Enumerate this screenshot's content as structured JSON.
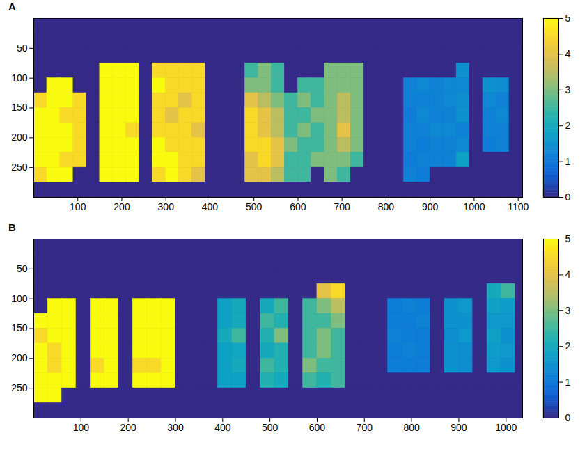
{
  "chart_data": [
    {
      "type": "heatmap",
      "title": "A",
      "x": [
        15,
        45,
        75,
        105,
        135,
        165,
        195,
        225,
        255,
        285,
        315,
        345,
        375,
        405,
        435,
        465,
        495,
        525,
        555,
        585,
        615,
        645,
        675,
        705,
        735,
        765,
        795,
        825,
        855,
        885,
        915,
        945,
        975,
        1005,
        1035,
        1065,
        1095
      ],
      "y": [
        12.5,
        37.5,
        62.5,
        87.5,
        112.5,
        137.5,
        162.5,
        187.5,
        212.5,
        237.5,
        262.5,
        287.5
      ],
      "values": [
        [
          0,
          0,
          0,
          0,
          0,
          0,
          0,
          0,
          0,
          0,
          0,
          0,
          0,
          0,
          0,
          0,
          0,
          0,
          0,
          0,
          0,
          0,
          0,
          0,
          0,
          0,
          0,
          0,
          0,
          0,
          0,
          0,
          0,
          0,
          0,
          0,
          0
        ],
        [
          0,
          0,
          0,
          0,
          0,
          0,
          0,
          0,
          0,
          0,
          0,
          0,
          0,
          0,
          0,
          0,
          0,
          0,
          0,
          0,
          0,
          0,
          0,
          0,
          0,
          0,
          0,
          0,
          0,
          0,
          0,
          0,
          0,
          0,
          0,
          0,
          0
        ],
        [
          0,
          0,
          0,
          0,
          0,
          0,
          0,
          0,
          0,
          0,
          0,
          0,
          0,
          0,
          0,
          0,
          0,
          0,
          0,
          0,
          0,
          0,
          0,
          0,
          0,
          0,
          0,
          0,
          0,
          0,
          0,
          0,
          0,
          0,
          0,
          0,
          0
        ],
        [
          0,
          0,
          0,
          0,
          0,
          5,
          5,
          5,
          0,
          4.5,
          4.5,
          4.5,
          4.5,
          0,
          0,
          0,
          2.5,
          3,
          2.5,
          0,
          0,
          0,
          3,
          3,
          3,
          0,
          0,
          0,
          0,
          0,
          0,
          0,
          1.5,
          0,
          0,
          0,
          0
        ],
        [
          0,
          5,
          5,
          0,
          0,
          5,
          5,
          5,
          0,
          5,
          4.5,
          4.5,
          4.5,
          0,
          0,
          0,
          3,
          3,
          2.5,
          0,
          2.5,
          2.5,
          3,
          3,
          3,
          0,
          0,
          0,
          1.2,
          1.3,
          1.2,
          1.3,
          1.3,
          0,
          1.5,
          1.4,
          0
        ],
        [
          4.5,
          5,
          5,
          4.5,
          0,
          5,
          5,
          5,
          0,
          4.5,
          4.5,
          4,
          4.5,
          0,
          0,
          0,
          4,
          3.5,
          3,
          2.5,
          3,
          2.5,
          3,
          3.5,
          3,
          0,
          0,
          0,
          1.2,
          1.2,
          1.2,
          1.3,
          1.4,
          0,
          1.3,
          1.2,
          0
        ],
        [
          5,
          5,
          4.5,
          4.5,
          0,
          5,
          5,
          5,
          0,
          4.5,
          4,
          4.5,
          4.5,
          0,
          0,
          0,
          4.5,
          4,
          3.5,
          2.5,
          2.5,
          3,
          3,
          3.5,
          3,
          0,
          0,
          0,
          1.1,
          1.3,
          1.2,
          1.2,
          1.5,
          0,
          1.2,
          1.3,
          0
        ],
        [
          5,
          5,
          5,
          4.5,
          0,
          5,
          5,
          4.5,
          0,
          4.5,
          4.5,
          4.5,
          4,
          0,
          0,
          0,
          4.5,
          4,
          3.5,
          2.5,
          3,
          2.5,
          3,
          4,
          3,
          0,
          0,
          0,
          1.2,
          1.2,
          1.3,
          1.3,
          1.2,
          0,
          1.2,
          1.2,
          0
        ],
        [
          5,
          5,
          5,
          4.5,
          0,
          5,
          5,
          5,
          0,
          5,
          4.5,
          4.5,
          4.5,
          0,
          0,
          0,
          4.5,
          4.5,
          4,
          3,
          2.5,
          2.5,
          3,
          3.5,
          3,
          0,
          0,
          0,
          1.2,
          1.1,
          1.2,
          1.2,
          1.3,
          0,
          1.1,
          1.2,
          0
        ],
        [
          5,
          5,
          4.5,
          4.5,
          0,
          5,
          5,
          5,
          0,
          5,
          5,
          4.5,
          4.5,
          0,
          0,
          0,
          4,
          4.5,
          4,
          2.5,
          2.5,
          3,
          3,
          3,
          2.5,
          0,
          0,
          0,
          1.1,
          1.2,
          1.2,
          1.2,
          1.8,
          0,
          0,
          0,
          0
        ],
        [
          4.5,
          5,
          5,
          0,
          0,
          5,
          5,
          5,
          0,
          4.5,
          5,
          4.5,
          4,
          0,
          0,
          0,
          4,
          4,
          3.5,
          2.5,
          2.5,
          0,
          3,
          2.5,
          0,
          0,
          0,
          0,
          1.2,
          1.1,
          0,
          0,
          0,
          0,
          0,
          0,
          0
        ],
        [
          0,
          0,
          0,
          0,
          0,
          0,
          0,
          0,
          0,
          0,
          0,
          0,
          0,
          0,
          0,
          0,
          0,
          0,
          0,
          0,
          0,
          0,
          0,
          0,
          0,
          0,
          0,
          0,
          0,
          0,
          0,
          0,
          0,
          0,
          0,
          0,
          0
        ]
      ],
      "xlim": [
        0,
        1110
      ],
      "ylim": [
        0,
        300
      ],
      "xticks": [
        100,
        200,
        300,
        400,
        500,
        600,
        700,
        800,
        900,
        1000,
        1100
      ],
      "yticks": [
        50,
        100,
        150,
        200,
        250
      ],
      "colorbar": {
        "range": [
          0,
          5
        ],
        "ticks": [
          0,
          1,
          2,
          3,
          4,
          5
        ]
      }
    },
    {
      "type": "heatmap",
      "title": "B",
      "x": [
        15,
        45,
        75,
        105,
        135,
        165,
        195,
        225,
        255,
        285,
        315,
        345,
        375,
        405,
        435,
        465,
        495,
        525,
        555,
        585,
        615,
        645,
        675,
        705,
        735,
        765,
        795,
        825,
        855,
        885,
        915,
        945,
        975,
        1005,
        1035
      ],
      "y": [
        12.5,
        37.5,
        62.5,
        87.5,
        112.5,
        137.5,
        162.5,
        187.5,
        212.5,
        237.5,
        262.5,
        287.5
      ],
      "values": [
        [
          0,
          0,
          0,
          0,
          0,
          0,
          0,
          0,
          0,
          0,
          0,
          0,
          0,
          0,
          0,
          0,
          0,
          0,
          0,
          0,
          0,
          0,
          0,
          0,
          0,
          0,
          0,
          0,
          0,
          0,
          0,
          0,
          0,
          0,
          0
        ],
        [
          0,
          0,
          0,
          0,
          0,
          0,
          0,
          0,
          0,
          0,
          0,
          0,
          0,
          0,
          0,
          0,
          0,
          0,
          0,
          0,
          0,
          0,
          0,
          0,
          0,
          0,
          0,
          0,
          0,
          0,
          0,
          0,
          0,
          0,
          0
        ],
        [
          0,
          0,
          0,
          0,
          0,
          0,
          0,
          0,
          0,
          0,
          0,
          0,
          0,
          0,
          0,
          0,
          0,
          0,
          0,
          0,
          0,
          0,
          0,
          0,
          0,
          0,
          0,
          0,
          0,
          0,
          0,
          0,
          0,
          0,
          0
        ],
        [
          0,
          0,
          0,
          0,
          0,
          0,
          0,
          0,
          0,
          0,
          0,
          0,
          0,
          0,
          0,
          0,
          0,
          0,
          0,
          0,
          4,
          4.5,
          0,
          0,
          0,
          0,
          0,
          0,
          0,
          0,
          0,
          0,
          2,
          2.5,
          0
        ],
        [
          0,
          5,
          5,
          0,
          5,
          5,
          0,
          5,
          5,
          5,
          0,
          0,
          0,
          1.8,
          2,
          0,
          2,
          2.5,
          0,
          2.5,
          3,
          3.5,
          0,
          0,
          0,
          1.1,
          1.2,
          1.1,
          0,
          1.5,
          1.6,
          0,
          1.8,
          1.7,
          0
        ],
        [
          5,
          5,
          5,
          0,
          5,
          5,
          0,
          5,
          5,
          5,
          0,
          0,
          0,
          1.8,
          2,
          0,
          2.5,
          2.2,
          0,
          2.5,
          2.5,
          3,
          0,
          0,
          0,
          1.1,
          1.1,
          1.2,
          0,
          1.5,
          1.5,
          0,
          1.6,
          1.6,
          0
        ],
        [
          4.5,
          5,
          5,
          0,
          5,
          5,
          0,
          5,
          5,
          5,
          0,
          0,
          0,
          2,
          2.5,
          0,
          2.2,
          3,
          0,
          2.5,
          3,
          2.5,
          0,
          0,
          0,
          1.2,
          1.1,
          1.1,
          0,
          1.4,
          1.6,
          0,
          1.8,
          1.5,
          0
        ],
        [
          5,
          4.5,
          5,
          0,
          5,
          5,
          0,
          5,
          5,
          5,
          0,
          0,
          0,
          1.8,
          1.9,
          0,
          2,
          2.2,
          0,
          2.5,
          3,
          2.5,
          0,
          0,
          0,
          1.1,
          1.2,
          1.1,
          0,
          1.5,
          1.4,
          0,
          1.7,
          1.6,
          0
        ],
        [
          5,
          4.5,
          5,
          0,
          4.5,
          5,
          0,
          4.5,
          4.5,
          5,
          0,
          0,
          0,
          1.8,
          2,
          0,
          2.5,
          2.2,
          0,
          3,
          2.5,
          2.5,
          0,
          0,
          0,
          1.1,
          1.1,
          1.1,
          0,
          1.5,
          1.4,
          0,
          1.6,
          1.5,
          0
        ],
        [
          5,
          5,
          5,
          0,
          5,
          5,
          0,
          5,
          5,
          5,
          0,
          0,
          0,
          1.8,
          1.8,
          0,
          2.2,
          2,
          0,
          2.5,
          2.2,
          2.5,
          0,
          0,
          0,
          0,
          0,
          0,
          0,
          0,
          0,
          0,
          0,
          0,
          0
        ],
        [
          5,
          5,
          0,
          0,
          0,
          0,
          0,
          0,
          0,
          0,
          0,
          0,
          0,
          0,
          0,
          0,
          0,
          0,
          0,
          0,
          0,
          0,
          0,
          0,
          0,
          0,
          0,
          0,
          0,
          0,
          0,
          0,
          0,
          0,
          0
        ],
        [
          0,
          0,
          0,
          0,
          0,
          0,
          0,
          0,
          0,
          0,
          0,
          0,
          0,
          0,
          0,
          0,
          0,
          0,
          0,
          0,
          0,
          0,
          0,
          0,
          0,
          0,
          0,
          0,
          0,
          0,
          0,
          0,
          0,
          0,
          0
        ]
      ],
      "xlim": [
        0,
        1035
      ],
      "ylim": [
        0,
        300
      ],
      "xticks": [
        100,
        200,
        300,
        400,
        500,
        600,
        700,
        800,
        900,
        1000
      ],
      "yticks": [
        50,
        100,
        150,
        200,
        250
      ],
      "colorbar": {
        "range": [
          0,
          5
        ],
        "ticks": [
          0,
          1,
          2,
          3,
          4,
          5
        ]
      }
    }
  ]
}
